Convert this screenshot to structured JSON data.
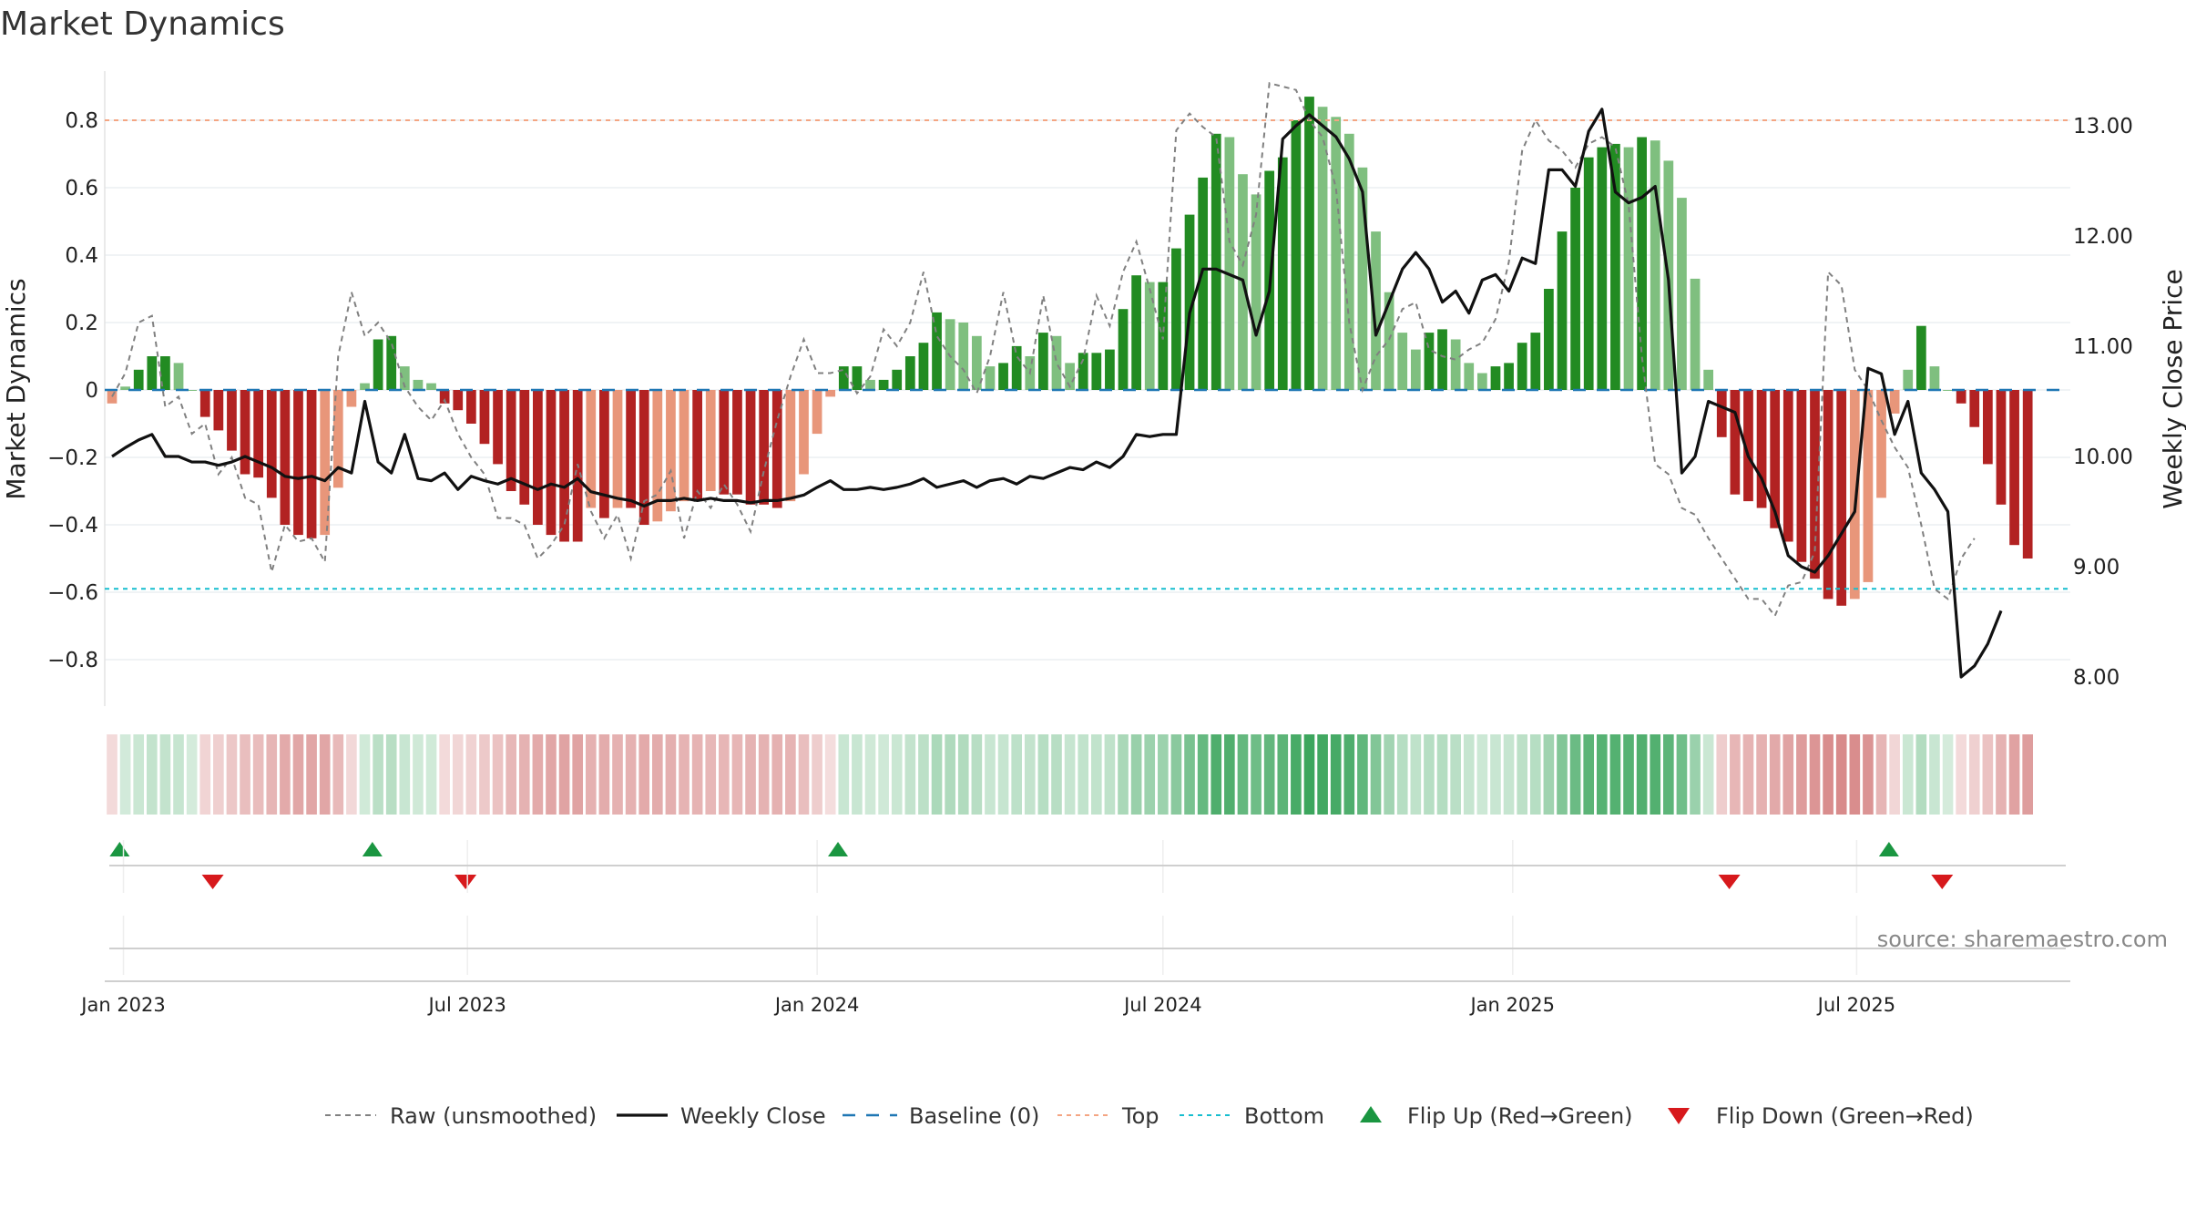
{
  "title": "Market Dynamics",
  "source": "source: sharemaestro.com",
  "chart_data": {
    "type": "bar",
    "ylabel_left": "Market Dynamics",
    "ylabel_right": "Weekly Close Price",
    "ylim_left": [
      -0.93,
      0.95
    ],
    "yticks_left": [
      0.8,
      0.6,
      0.4,
      0.2,
      0,
      -0.2,
      -0.4,
      -0.6,
      -0.8
    ],
    "ytick_labels_left": [
      "0.8",
      "0.6",
      "0.4",
      "0.2",
      "0",
      "−0.2",
      "−0.4",
      "−0.6",
      "−0.8"
    ],
    "yticks_right": [
      13,
      12,
      11,
      10,
      9,
      8
    ],
    "ytick_labels_right": [
      "13.00",
      "12.00",
      "11.00",
      "10.00",
      "9.00",
      "8.00"
    ],
    "x_start": "2022-12-26",
    "x_end": "2025-10-20",
    "x_step_days": 7,
    "xticks": [
      {
        "label": "Jan 2023",
        "date": "2023-01-01"
      },
      {
        "label": "Jul 2023",
        "date": "2023-07-01"
      },
      {
        "label": "Jan 2024",
        "date": "2024-01-01"
      },
      {
        "label": "Jul 2024",
        "date": "2024-07-01"
      },
      {
        "label": "Jan 2025",
        "date": "2025-01-01"
      },
      {
        "label": "Jul 2025",
        "date": "2025-07-01"
      }
    ],
    "top_line": 0.8,
    "bottom_line": -0.59,
    "baseline": 0,
    "colors": {
      "strong_up": "#228b22",
      "weak_up": "#7fbf7f",
      "strong_down": "#b22222",
      "weak_down": "#e8967a",
      "top": "#f4a582",
      "bottom": "#17becf",
      "baseline": "#1f77b4",
      "raw": "#808080",
      "close": "#111111",
      "flip_up": "#1a9641",
      "flip_down": "#d7191c"
    },
    "series": [
      {
        "name": "Market Dynamics",
        "values": [
          -0.04,
          0.01,
          0.06,
          0.1,
          0.1,
          0.08,
          0.0,
          -0.08,
          -0.12,
          -0.18,
          -0.25,
          -0.26,
          -0.32,
          -0.4,
          -0.43,
          -0.44,
          -0.43,
          -0.29,
          -0.05,
          0.02,
          0.15,
          0.16,
          0.07,
          0.03,
          0.02,
          -0.04,
          -0.06,
          -0.1,
          -0.16,
          -0.22,
          -0.3,
          -0.34,
          -0.4,
          -0.43,
          -0.45,
          -0.45,
          -0.35,
          -0.38,
          -0.35,
          -0.35,
          -0.4,
          -0.39,
          -0.36,
          -0.33,
          -0.33,
          -0.3,
          -0.31,
          -0.31,
          -0.34,
          -0.34,
          -0.35,
          -0.33,
          -0.25,
          -0.13,
          -0.02,
          0.07,
          0.07,
          0.03,
          0.03,
          0.06,
          0.1,
          0.14,
          0.23,
          0.21,
          0.2,
          0.16,
          0.07,
          0.08,
          0.13,
          0.1,
          0.17,
          0.16,
          0.08,
          0.11,
          0.11,
          0.12,
          0.24,
          0.34,
          0.32,
          0.32,
          0.42,
          0.52,
          0.63,
          0.76,
          0.75,
          0.64,
          0.58,
          0.65,
          0.69,
          0.8,
          0.87,
          0.84,
          0.81,
          0.76,
          0.66,
          0.47,
          0.29,
          0.17,
          0.12,
          0.17,
          0.18,
          0.15,
          0.08,
          0.05,
          0.07,
          0.08,
          0.14,
          0.17,
          0.3,
          0.47,
          0.6,
          0.69,
          0.72,
          0.73,
          0.72,
          0.75,
          0.74,
          0.68,
          0.57,
          0.33,
          0.06,
          -0.14,
          -0.31,
          -0.33,
          -0.35,
          -0.41,
          -0.45,
          -0.51,
          -0.56,
          -0.62,
          -0.64,
          -0.62,
          -0.57,
          -0.32,
          -0.07,
          0.06,
          0.19,
          0.07,
          0.0,
          -0.04,
          -0.11,
          -0.22,
          -0.34,
          -0.46,
          -0.5
        ]
      },
      {
        "name": "Raw (unsmoothed)",
        "values": [
          -0.02,
          0.05,
          0.2,
          0.22,
          -0.05,
          -0.02,
          -0.13,
          -0.1,
          -0.25,
          -0.2,
          -0.32,
          -0.34,
          -0.54,
          -0.4,
          -0.45,
          -0.44,
          -0.51,
          0.1,
          0.29,
          0.16,
          0.2,
          0.14,
          0.01,
          -0.05,
          -0.09,
          -0.03,
          -0.13,
          -0.2,
          -0.25,
          -0.38,
          -0.38,
          -0.4,
          -0.5,
          -0.46,
          -0.4,
          -0.22,
          -0.36,
          -0.44,
          -0.37,
          -0.5,
          -0.33,
          -0.31,
          -0.24,
          -0.44,
          -0.3,
          -0.35,
          -0.28,
          -0.34,
          -0.42,
          -0.24,
          -0.09,
          0.04,
          0.15,
          0.05,
          0.05,
          0.06,
          -0.01,
          0.04,
          0.18,
          0.13,
          0.2,
          0.35,
          0.16,
          0.1,
          0.06,
          -0.01,
          0.1,
          0.29,
          0.1,
          0.05,
          0.28,
          0.08,
          0.01,
          0.09,
          0.28,
          0.19,
          0.35,
          0.44,
          0.3,
          0.15,
          0.77,
          0.82,
          0.78,
          0.75,
          0.44,
          0.37,
          0.52,
          0.91,
          0.9,
          0.89,
          0.8,
          0.75,
          0.6,
          0.2,
          0.0,
          0.1,
          0.15,
          0.24,
          0.26,
          0.12,
          0.1,
          0.09,
          0.12,
          0.14,
          0.21,
          0.38,
          0.71,
          0.8,
          0.74,
          0.71,
          0.66,
          0.73,
          0.75,
          0.72,
          0.55,
          0.1,
          -0.22,
          -0.25,
          -0.35,
          -0.37,
          -0.44,
          -0.5,
          -0.56,
          -0.62,
          -0.62,
          -0.67,
          -0.58,
          -0.57,
          -0.48,
          0.35,
          0.31,
          0.06,
          0.0,
          -0.09,
          -0.17,
          -0.23,
          -0.4,
          -0.59,
          -0.62,
          -0.5,
          -0.44
        ]
      },
      {
        "name": "Weekly Close",
        "values": [
          10.0,
          10.08,
          10.15,
          10.2,
          10.0,
          10.0,
          9.95,
          9.95,
          9.92,
          9.95,
          10.0,
          9.95,
          9.9,
          9.82,
          9.8,
          9.82,
          9.78,
          9.9,
          9.85,
          10.5,
          9.95,
          9.85,
          10.2,
          9.8,
          9.78,
          9.85,
          9.7,
          9.82,
          9.78,
          9.75,
          9.8,
          9.75,
          9.7,
          9.75,
          9.72,
          9.8,
          9.68,
          9.65,
          9.62,
          9.6,
          9.55,
          9.6,
          9.6,
          9.62,
          9.6,
          9.62,
          9.6,
          9.6,
          9.58,
          9.6,
          9.6,
          9.62,
          9.65,
          9.72,
          9.78,
          9.7,
          9.7,
          9.72,
          9.7,
          9.72,
          9.75,
          9.8,
          9.72,
          9.75,
          9.78,
          9.72,
          9.78,
          9.8,
          9.75,
          9.82,
          9.8,
          9.85,
          9.9,
          9.88,
          9.95,
          9.9,
          10.0,
          10.2,
          10.18,
          10.2,
          10.2,
          11.3,
          11.7,
          11.7,
          11.65,
          11.6,
          11.1,
          11.5,
          12.88,
          13.0,
          13.1,
          13.0,
          12.9,
          12.7,
          12.4,
          11.1,
          11.4,
          11.7,
          11.85,
          11.7,
          11.4,
          11.5,
          11.3,
          11.6,
          11.65,
          11.5,
          11.8,
          11.75,
          12.6,
          12.6,
          12.45,
          12.95,
          13.15,
          12.4,
          12.3,
          12.35,
          12.45,
          11.6,
          9.85,
          10.0,
          10.5,
          10.45,
          10.4,
          10.0,
          9.8,
          9.5,
          9.1,
          9.0,
          8.95,
          9.1,
          9.3,
          9.5,
          10.8,
          10.75,
          10.2,
          10.5,
          9.85,
          9.7,
          9.5,
          8.0,
          8.1,
          8.3,
          8.6
        ]
      }
    ],
    "flips": {
      "up_dates": [
        "2022-12-30",
        "2023-05-12",
        "2024-01-12",
        "2025-07-18"
      ],
      "down_dates": [
        "2023-02-17",
        "2023-06-30",
        "2025-04-25",
        "2025-08-15"
      ]
    },
    "legend": [
      {
        "label": "Raw (unsmoothed)",
        "style": "dash-grey"
      },
      {
        "label": "Weekly Close",
        "style": "line-black"
      },
      {
        "label": "Baseline (0)",
        "style": "dash-blue"
      },
      {
        "label": "Top",
        "style": "dot-orange"
      },
      {
        "label": "Bottom",
        "style": "dot-cyan"
      },
      {
        "label": "Flip Up (Red→Green)",
        "style": "tri-up"
      },
      {
        "label": "Flip Down (Green→Red)",
        "style": "tri-down"
      }
    ],
    "legend_position": "bottom-center",
    "grid": true
  }
}
